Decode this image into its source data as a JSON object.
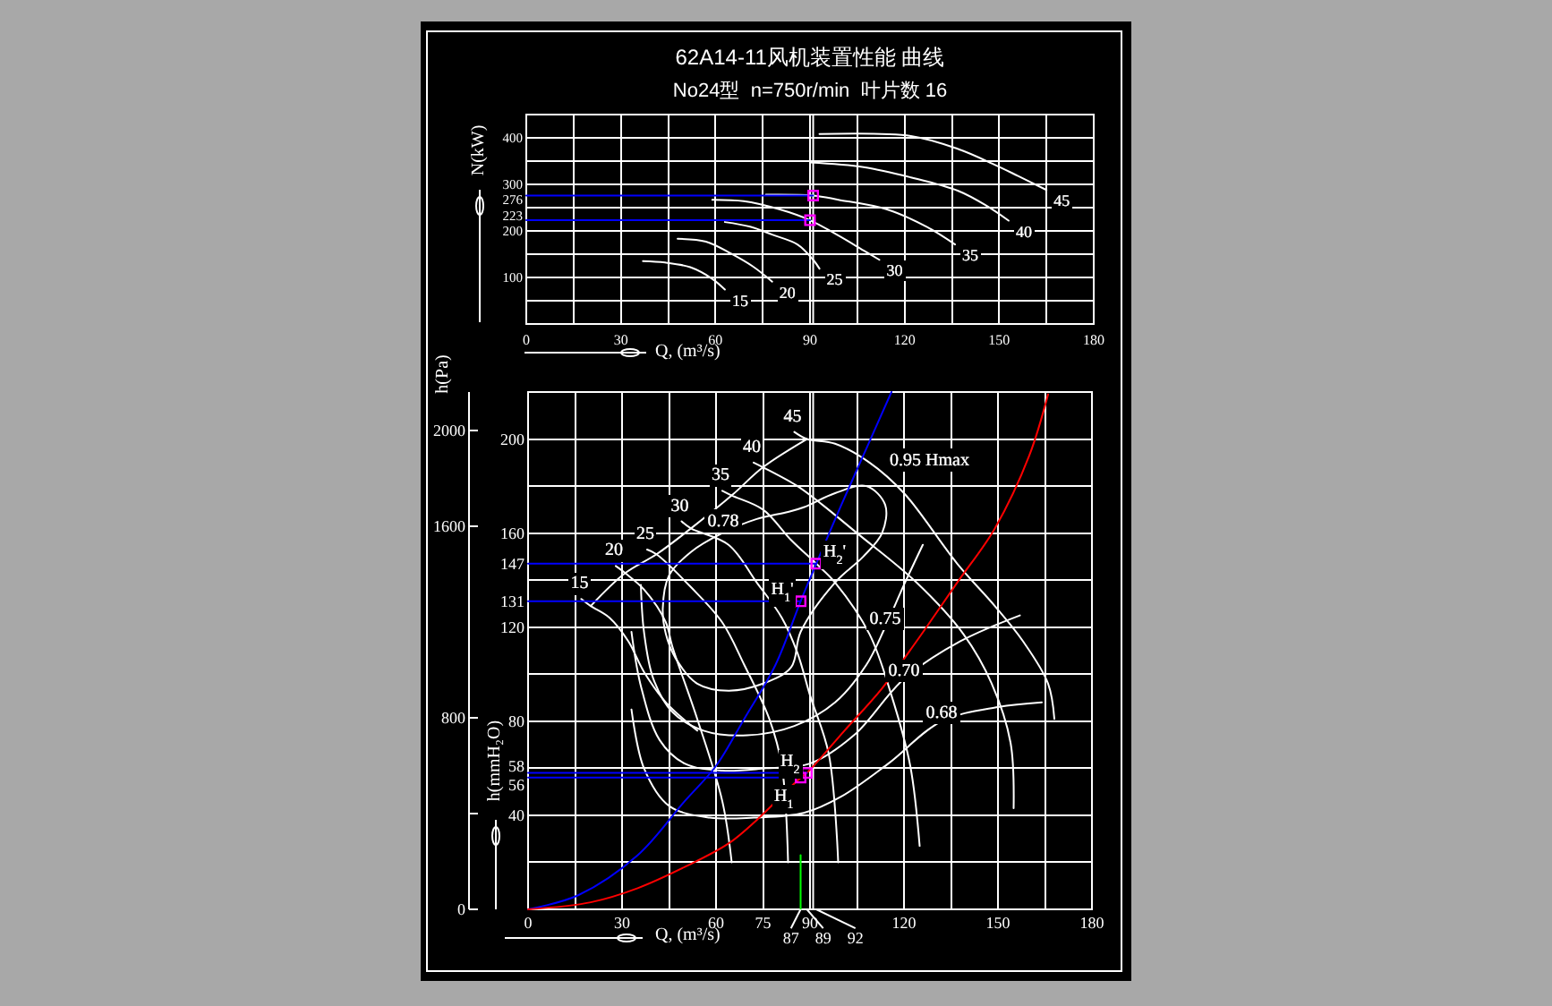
{
  "chart_data": [
    {
      "type": "line",
      "title": "62A14-11风机装置性能 曲线",
      "subtitle": "No24型  n=750r/min  叶片数 16",
      "xlabel": "Q, (m³/s)",
      "ylabel": "N(kW)",
      "xlim": [
        0,
        180
      ],
      "ylim": [
        0,
        450
      ],
      "xticks": [
        0,
        {
          "value": 15,
          "label": null
        },
        30,
        {
          "value": 45,
          "label": null
        },
        60,
        {
          "value": 75,
          "label": null
        },
        90,
        {
          "value": 105,
          "label": null
        },
        120,
        {
          "value": 135,
          "label": null
        },
        150,
        {
          "value": 165,
          "label": null
        },
        180
      ],
      "yticks": [
        {
          "value": 50,
          "label": null
        },
        100,
        {
          "value": 150,
          "label": null
        },
        200,
        223,
        {
          "value": 250,
          "label": null
        },
        276,
        300,
        {
          "value": 350,
          "label": null
        },
        400,
        {
          "value": 450,
          "label": null
        }
      ],
      "grid": true,
      "ref_lines": [
        {
          "axis": "x",
          "value": 91,
          "color": "#ffffff"
        }
      ],
      "series": [
        {
          "name": "15",
          "color": "#ffffff",
          "x": [
            37,
            44,
            52,
            59,
            63
          ],
          "values": [
            135,
            132,
            122,
            97,
            74
          ]
        },
        {
          "name": "20",
          "color": "#ffffff",
          "x": [
            48,
            57,
            65,
            72,
            78
          ],
          "values": [
            183,
            177,
            151,
            123,
            91
          ]
        },
        {
          "name": "25",
          "color": "#ffffff",
          "x": [
            63,
            71,
            78,
            86,
            91,
            93
          ],
          "values": [
            219,
            209,
            192,
            171,
            138,
            119
          ]
        },
        {
          "name": "30",
          "color": "#ffffff",
          "x": [
            59,
            69,
            80,
            90,
            99,
            107,
            112
          ],
          "values": [
            267,
            264,
            247,
            223,
            190,
            158,
            138
          ]
        },
        {
          "name": "35",
          "color": "#ffffff",
          "x": [
            76,
            91,
            99,
            114,
            127,
            136
          ],
          "values": [
            278,
            276,
            267,
            247,
            209,
            171
          ]
        },
        {
          "name": "40",
          "color": "#ffffff",
          "x": [
            90,
            107,
            122,
            137,
            146,
            153
          ],
          "values": [
            347,
            337,
            315,
            286,
            254,
            222
          ]
        },
        {
          "name": "45",
          "color": "#ffffff",
          "x": [
            93,
            122,
            137,
            148,
            156,
            165
          ],
          "values": [
            408,
            404,
            376,
            344,
            318,
            288
          ]
        },
        {
          "color": "#0000ff",
          "x": [
            0,
            91
          ],
          "values": [
            276,
            276
          ]
        },
        {
          "color": "#0000ff",
          "x": [
            0,
            90
          ],
          "values": [
            223,
            223
          ]
        },
        {
          "type": "scatter",
          "marker": "square",
          "color": "#ff00ff",
          "x": [
            91,
            90
          ],
          "values": [
            276,
            223
          ]
        }
      ]
    },
    {
      "type": "line",
      "xlabel": "Q, (m³/s)",
      "ylabel": "h(mmH₂O)",
      "y2label": "h(Pa)",
      "xlim": [
        0,
        180
      ],
      "ylim": [
        0,
        220
      ],
      "y2lim": [
        0,
        2160
      ],
      "xticks": [
        0,
        {
          "value": 15,
          "label": null
        },
        30,
        {
          "value": 45,
          "label": null
        },
        60,
        75,
        90,
        {
          "value": 105,
          "label": null
        },
        120,
        {
          "value": 135,
          "label": null
        },
        150,
        {
          "value": 165,
          "label": null
        },
        180
      ],
      "yticks": [
        {
          "value": 20,
          "label": null
        },
        40,
        56,
        58,
        {
          "value": 60,
          "label": null
        },
        80,
        {
          "value": 100,
          "label": null
        },
        120,
        131,
        {
          "value": 140,
          "label": null
        },
        147,
        160,
        {
          "value": 180,
          "label": null
        },
        200,
        {
          "value": 220,
          "label": null
        }
      ],
      "y2ticks": [
        0,
        {
          "value": 400,
          "label": null
        },
        800,
        1600,
        2000
      ],
      "grid": true,
      "ref_lines": [
        {
          "axis": "x",
          "value": 91,
          "color": "#ffffff"
        }
      ],
      "series": [
        {
          "name": "15",
          "color": "#ffffff",
          "x": [
            17,
            20,
            26,
            32,
            37,
            44,
            54
          ],
          "values": [
            132,
            129,
            124,
            114,
            101,
            88,
            76
          ]
        },
        {
          "name": "20",
          "color": "#ffffff",
          "x": [
            28,
            31,
            37,
            44,
            46,
            54,
            62,
            65
          ],
          "values": [
            146,
            143,
            136,
            122,
            112,
            81,
            46,
            20
          ]
        },
        {
          "name": "25",
          "color": "#ffffff",
          "x": [
            38,
            41,
            52,
            62,
            69,
            77,
            81,
            83
          ],
          "values": [
            153,
            151,
            137,
            122,
            104,
            81,
            61,
            20
          ]
        },
        {
          "name": "30",
          "color": "#ffffff",
          "x": [
            49,
            52,
            64,
            73,
            81,
            86,
            90,
            96,
            99
          ],
          "values": [
            165,
            162,
            155,
            139,
            124,
            109,
            91,
            66,
            20
          ]
        },
        {
          "name": "35",
          "color": "#ffffff",
          "x": [
            62,
            65,
            75,
            84,
            92,
            98,
            109,
            116,
            122,
            125
          ],
          "values": [
            178,
            176,
            170,
            157,
            147,
            139,
            117,
            91,
            61,
            27
          ]
        },
        {
          "name": "40",
          "color": "#ffffff",
          "x": [
            72,
            75,
            86,
            94,
            105,
            124,
            139,
            148,
            154,
            155
          ],
          "values": [
            190,
            188,
            180,
            172,
            160,
            139,
            117,
            96,
            71,
            43
          ]
        },
        {
          "name": "45",
          "color": "#ffffff",
          "x": [
            85,
            89,
            98,
            109,
            120,
            137,
            149,
            158,
            166,
            168
          ],
          "values": [
            203,
            200,
            198,
            190,
            177,
            147,
            129,
            114,
            96,
            81
          ]
        },
        {
          "color": "#ffffff",
          "x": [
            20,
            31,
            41,
            52,
            65,
            75,
            89
          ],
          "values": [
            129,
            143,
            151,
            162,
            176,
            188,
            200
          ]
        },
        {
          "color": "#ffffff",
          "x": [
            36,
            37,
            40,
            46,
            56,
            70,
            85,
            98,
            108,
            114,
            120,
            126
          ],
          "values": [
            138,
            118,
            98,
            84,
            76,
            74,
            78,
            88,
            104,
            120,
            138,
            155
          ]
        },
        {
          "color": "#ffffff",
          "x": [
            33,
            36,
            42,
            50,
            62,
            76,
            90,
            104,
            120,
            138,
            157
          ],
          "values": [
            118,
            95,
            72,
            62,
            59,
            60,
            62,
            74,
            98,
            114,
            125
          ]
        },
        {
          "color": "#ffffff",
          "x": [
            33,
            37,
            45,
            58,
            72,
            88,
            100,
            115,
            132,
            150,
            164
          ],
          "values": [
            85,
            60,
            44,
            39,
            39,
            41,
            48,
            62,
            80,
            86,
            88
          ]
        },
        {
          "color": "#0000ff",
          "x": [
            0,
            16,
            35,
            50,
            60,
            69,
            79,
            87,
            92,
            100,
            108,
            116
          ],
          "values": [
            0,
            6,
            23,
            46,
            61,
            81,
            104,
            131,
            147,
            172,
            196,
            220
          ]
        },
        {
          "color": "#ff0000",
          "x": [
            0,
            20,
            35,
            50,
            64,
            73,
            87,
            89,
            101,
            113,
            124,
            137,
            149,
            160,
            166
          ],
          "values": [
            0,
            3,
            9,
            18,
            28,
            38,
            56,
            58,
            76,
            94,
            114,
            139,
            162,
            193,
            219
          ]
        },
        {
          "color": "#0000ff",
          "x": [
            0,
            92
          ],
          "values": [
            147,
            147
          ]
        },
        {
          "color": "#0000ff",
          "x": [
            0,
            87
          ],
          "values": [
            131,
            131
          ]
        },
        {
          "color": "#0000ff",
          "x": [
            0,
            89
          ],
          "values": [
            58,
            58
          ]
        },
        {
          "color": "#0000ff",
          "x": [
            0,
            87
          ],
          "values": [
            56,
            56
          ]
        },
        {
          "color": "#00ff00",
          "x": [
            87,
            87
          ],
          "values": [
            0,
            23
          ]
        },
        {
          "type": "scatter",
          "marker": "square",
          "color": "#ff00ff",
          "x": [
            92,
            87,
            89,
            87
          ],
          "values": [
            147,
            131,
            58,
            56
          ]
        }
      ],
      "annotations": [
        {
          "text": "87",
          "x": 87,
          "y": 0
        },
        {
          "text": "89",
          "x": 89,
          "y": 0
        },
        {
          "text": "92",
          "x": 92,
          "y": 0
        },
        "0.95 Hmax",
        "0.78",
        {
          "text": "0.75",
          "x": 114,
          "y": 120
        },
        {
          "text": "0.70",
          "x": 120,
          "y": 98
        },
        {
          "text": "0.68",
          "x": 132,
          "y": 80
        },
        {
          "text": "H$_{2}$'",
          "x": 92,
          "y": 147
        },
        {
          "text": "H$_{1}$'",
          "x": 87,
          "y": 131
        },
        {
          "text": "H$_{2}$",
          "x": 89,
          "y": 58
        },
        {
          "text": "H$_{1}$",
          "x": 87,
          "y": 56
        }
      ]
    }
  ]
}
